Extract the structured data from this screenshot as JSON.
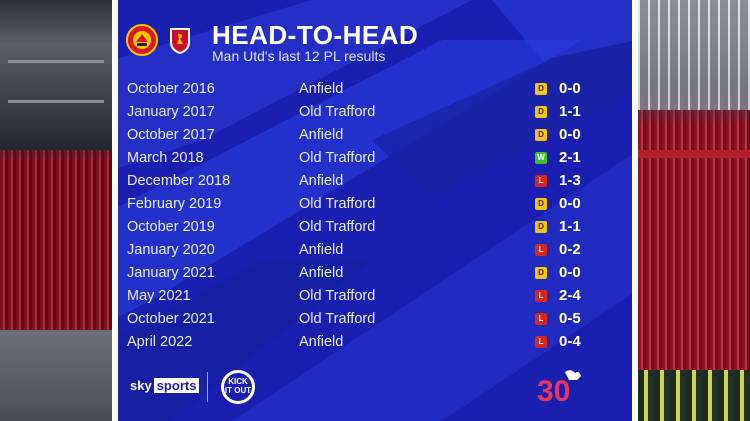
{
  "title": "HEAD-TO-HEAD",
  "subtitle": "Man Utd's last 12 PL results",
  "icons": {
    "home_badge": "man-utd-crest-icon",
    "away_badge": "liverpool-crest-icon",
    "kick_it_out": "kick-it-out-logo",
    "premier_league_30": "premier-league-30-logo"
  },
  "colors": {
    "panel": "#1b1fb0",
    "draw": "#f2c318",
    "win": "#3fbf2e",
    "loss": "#d7261e"
  },
  "results": [
    {
      "date": "October 2016",
      "venue": "Anfield",
      "result": "D",
      "score": "0-0"
    },
    {
      "date": "January 2017",
      "venue": "Old Trafford",
      "result": "D",
      "score": "1-1"
    },
    {
      "date": "October 2017",
      "venue": "Anfield",
      "result": "D",
      "score": "0-0"
    },
    {
      "date": "March 2018",
      "venue": "Old Trafford",
      "result": "W",
      "score": "2-1"
    },
    {
      "date": "December 2018",
      "venue": "Anfield",
      "result": "L",
      "score": "1-3"
    },
    {
      "date": "February 2019",
      "venue": "Old Trafford",
      "result": "D",
      "score": "0-0"
    },
    {
      "date": "October 2019",
      "venue": "Old Trafford",
      "result": "D",
      "score": "1-1"
    },
    {
      "date": "January 2020",
      "venue": "Anfield",
      "result": "L",
      "score": "0-2"
    },
    {
      "date": "January 2021",
      "venue": "Anfield",
      "result": "D",
      "score": "0-0"
    },
    {
      "date": "May 2021",
      "venue": "Old Trafford",
      "result": "L",
      "score": "2-4"
    },
    {
      "date": "October 2021",
      "venue": "Old Trafford",
      "result": "L",
      "score": "0-5"
    },
    {
      "date": "April 2022",
      "venue": "Anfield",
      "result": "L",
      "score": "0-4"
    }
  ],
  "footer": {
    "sky_text": "sky",
    "sports_text": "sports",
    "kick_it_out_text": "KICK IT OUT",
    "pl_number": "30"
  }
}
